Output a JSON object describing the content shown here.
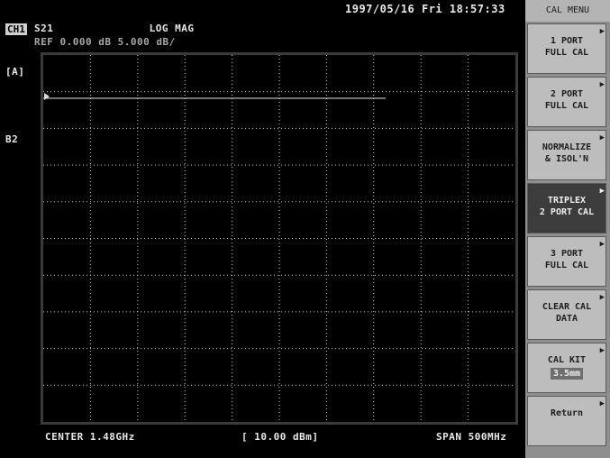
{
  "status": {
    "datetime": "1997/05/16 Fri 18:57:33"
  },
  "trace": {
    "channel": "CH1",
    "param": "S21",
    "mode": "LOG MAG",
    "ref_line": "REF 0.000 dB 5.000 dB/",
    "label_a": "[A]",
    "label_b": "B2"
  },
  "footer": {
    "center": "CENTER 1.48GHz",
    "ref": "[ 10.00 dBm]",
    "span": "SPAN 500MHz"
  },
  "menu": {
    "title": "CAL MENU",
    "softkeys": [
      {
        "line1": "1 PORT",
        "line2": "FULL CAL"
      },
      {
        "line1": "2 PORT",
        "line2": "FULL CAL"
      },
      {
        "line1": "NORMALIZE",
        "line2": "& ISOL'N"
      },
      {
        "line1": "TRIPLEX",
        "line2": "2 PORT CAL"
      },
      {
        "line1": "3 PORT",
        "line2": "FULL CAL"
      },
      {
        "line1": "CLEAR CAL",
        "line2": "DATA"
      },
      {
        "line1": "CAL KIT",
        "line2": "3.5mm"
      },
      {
        "line1": "Return",
        "line2": ""
      }
    ],
    "active_index": 3
  },
  "colors": {
    "screen_bg": "#000000",
    "grid": "#c8c8c8",
    "trace": "#e6e6e6",
    "softkey_bg": "#bdbdbd",
    "softkey_active": "#3c3c3c"
  }
}
